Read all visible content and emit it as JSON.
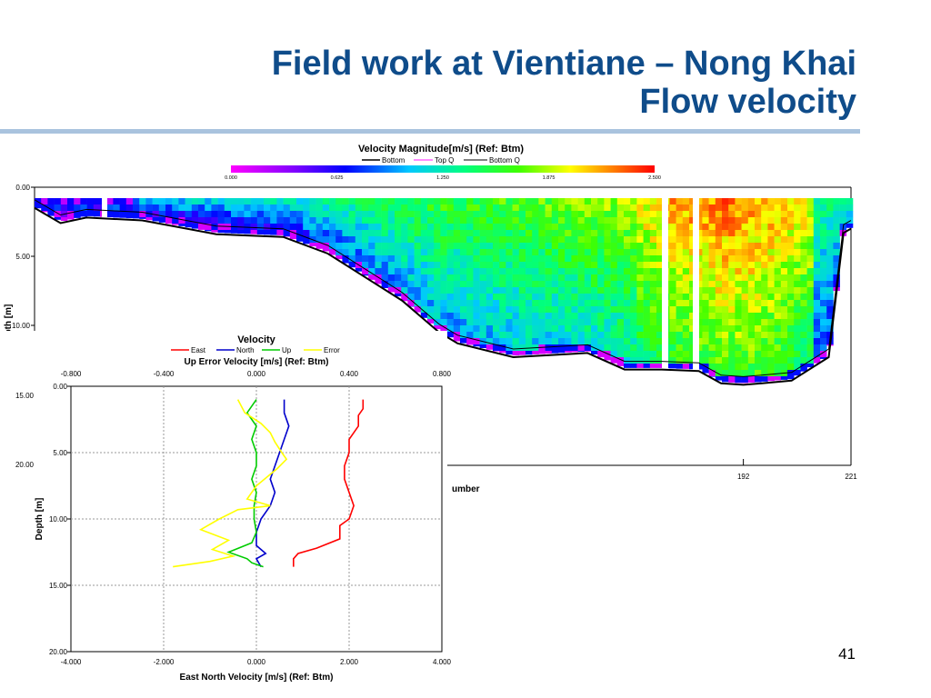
{
  "slide": {
    "title_line1": "Field work at Vientiane – Nong Khai",
    "title_line2": "Flow velocity",
    "page_number": "41"
  },
  "chart_data": [
    {
      "type": "heatmap",
      "title": "Velocity Magnitude[m/s] (Ref: Btm)",
      "legend": [
        "Bottom",
        "Top Q",
        "Bottom Q"
      ],
      "legend_colors": [
        "#000000",
        "#ff66ff",
        "#000000"
      ],
      "colorbar_ticks": [
        "0.000",
        "0.625",
        "1.250",
        "1.875",
        "2.500"
      ],
      "colorbar_range": [
        0,
        2.5
      ],
      "ylabel": "Depth [m]",
      "yticks": [
        "0.00",
        "5.00",
        "10.00",
        "15.00",
        "20.00"
      ],
      "ylim": [
        0,
        20
      ],
      "xlabel_visible": "umber",
      "xticks": [
        "192",
        "221"
      ],
      "xlim": [
        1,
        221
      ],
      "bottom_depth_profile": {
        "ensemble": [
          1,
          8,
          15,
          30,
          50,
          68,
          80,
          90,
          100,
          110,
          115,
          130,
          150,
          160,
          170,
          180,
          186,
          192,
          197,
          205,
          215,
          219,
          221
        ],
        "depth": [
          1.5,
          2.6,
          2.2,
          2.4,
          3.4,
          3.6,
          4.8,
          6.5,
          8.2,
          10.5,
          11.3,
          12.3,
          12.0,
          13.2,
          13.2,
          13.3,
          14.2,
          14.3,
          14.2,
          14.0,
          12.3,
          3.3,
          3.0
        ]
      }
    },
    {
      "type": "line",
      "title": "Velocity",
      "series_names": [
        "East",
        "North",
        "Up",
        "Error"
      ],
      "series_colors": [
        "#ff0000",
        "#0000cc",
        "#00cc00",
        "#ffff00"
      ],
      "top_axis_label": "Up Error Velocity [m/s] (Ref: Btm)",
      "top_xticks": [
        "-0.800",
        "-0.400",
        "0.000",
        "0.400",
        "0.800"
      ],
      "top_xlim": [
        -0.8,
        0.8
      ],
      "bottom_axis_label": "East North Velocity [m/s] (Ref: Btm)",
      "bottom_xticks": [
        "-4.000",
        "-2.000",
        "0.000",
        "2.000",
        "4.000"
      ],
      "bottom_xlim": [
        -4,
        4
      ],
      "ylabel": "Depth [m]",
      "yticks": [
        "0.00",
        "5.00",
        "10.00",
        "15.00",
        "20.00"
      ],
      "ylim": [
        0,
        20
      ],
      "series": [
        {
          "name": "East",
          "axis": "bottom",
          "depth": [
            1.0,
            1.7,
            2.2,
            3.0,
            4.0,
            5.0,
            6.0,
            7.0,
            8.0,
            9.0,
            10.0,
            10.5,
            11.5,
            12.2,
            12.6,
            13.0,
            13.6
          ],
          "values": [
            2.3,
            2.3,
            2.2,
            2.2,
            2.0,
            2.0,
            1.9,
            1.9,
            2.0,
            2.1,
            2.0,
            1.8,
            1.8,
            1.3,
            0.9,
            0.8,
            0.8
          ]
        },
        {
          "name": "North",
          "axis": "bottom",
          "depth": [
            1.0,
            2.0,
            3.0,
            4.0,
            5.0,
            6.0,
            7.0,
            8.0,
            9.0,
            10.0,
            11.0,
            12.0,
            12.6,
            13.0,
            13.6
          ],
          "values": [
            0.6,
            0.6,
            0.7,
            0.6,
            0.5,
            0.4,
            0.3,
            0.4,
            0.3,
            0.1,
            0.0,
            0.0,
            0.2,
            0.0,
            0.1
          ]
        },
        {
          "name": "Up",
          "axis": "top",
          "depth": [
            1.0,
            2.0,
            3.0,
            4.0,
            5.0,
            6.0,
            7.0,
            8.0,
            9.0,
            10.0,
            11.0,
            11.8,
            12.5,
            13.0,
            13.3,
            13.6
          ],
          "values": [
            0.0,
            -0.04,
            0.0,
            -0.02,
            0.0,
            0.0,
            -0.02,
            0.0,
            -0.01,
            -0.01,
            0.0,
            -0.02,
            -0.12,
            -0.04,
            -0.02,
            0.03
          ]
        },
        {
          "name": "Error",
          "axis": "top",
          "depth": [
            1.0,
            2.0,
            2.8,
            3.5,
            4.2,
            5.0,
            5.5,
            6.2,
            7.5,
            8.5,
            9.0,
            9.3,
            10.0,
            10.8,
            11.6,
            12.3,
            12.8,
            13.2,
            13.6
          ],
          "values": [
            -0.08,
            -0.05,
            0.02,
            0.06,
            0.08,
            0.11,
            0.13,
            0.09,
            0.0,
            -0.04,
            0.06,
            -0.08,
            -0.16,
            -0.24,
            -0.12,
            -0.19,
            -0.1,
            -0.2,
            -0.36
          ]
        }
      ]
    }
  ]
}
